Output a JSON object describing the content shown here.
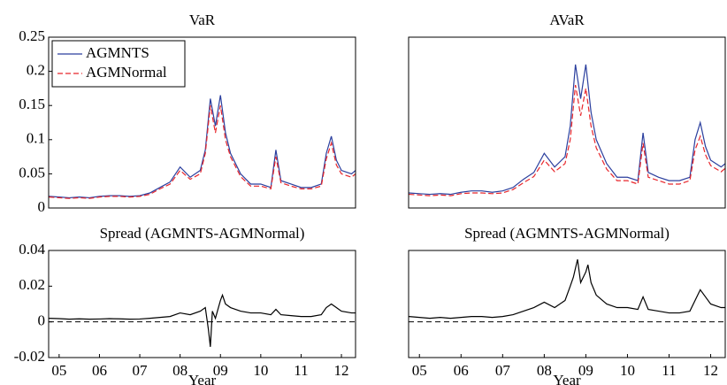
{
  "chart_data": [
    {
      "type": "line",
      "title": "VaR",
      "legend": "upper left",
      "x": [
        2004.75,
        2005,
        2005.25,
        2005.5,
        2005.75,
        2006,
        2006.25,
        2006.5,
        2006.75,
        2007,
        2007.25,
        2007.5,
        2007.75,
        2008,
        2008.25,
        2008.5,
        2008.625,
        2008.75,
        2008.875,
        2009,
        2009.125,
        2009.25,
        2009.5,
        2009.75,
        2010,
        2010.25,
        2010.375,
        2010.5,
        2010.75,
        2011,
        2011.25,
        2011.5,
        2011.625,
        2011.75,
        2011.875,
        2012,
        2012.25,
        2012.35
      ],
      "series": [
        {
          "name": "AGMNTS",
          "color": "#2b3f9e",
          "dash": false,
          "values": [
            0.017,
            0.016,
            0.015,
            0.016,
            0.015,
            0.017,
            0.018,
            0.018,
            0.017,
            0.018,
            0.022,
            0.03,
            0.038,
            0.06,
            0.045,
            0.055,
            0.085,
            0.16,
            0.12,
            0.165,
            0.11,
            0.08,
            0.05,
            0.035,
            0.035,
            0.03,
            0.085,
            0.04,
            0.035,
            0.03,
            0.03,
            0.035,
            0.08,
            0.105,
            0.07,
            0.055,
            0.05,
            0.055
          ]
        },
        {
          "name": "AGMNormal",
          "color": "#e8262b",
          "dash": true,
          "values": [
            0.016,
            0.015,
            0.014,
            0.015,
            0.014,
            0.016,
            0.017,
            0.017,
            0.016,
            0.017,
            0.02,
            0.028,
            0.035,
            0.055,
            0.042,
            0.05,
            0.08,
            0.15,
            0.11,
            0.15,
            0.1,
            0.075,
            0.046,
            0.032,
            0.032,
            0.028,
            0.075,
            0.037,
            0.032,
            0.028,
            0.028,
            0.032,
            0.072,
            0.095,
            0.063,
            0.05,
            0.045,
            0.05
          ]
        }
      ],
      "xlim": [
        2004.74,
        2012.35
      ],
      "ylim": [
        0,
        0.25
      ],
      "yticks": [
        0,
        0.05,
        0.1,
        0.15,
        0.2,
        0.25
      ]
    },
    {
      "type": "line",
      "title": "AVaR",
      "x": [
        2004.75,
        2005,
        2005.25,
        2005.5,
        2005.75,
        2006,
        2006.25,
        2006.5,
        2006.75,
        2007,
        2007.25,
        2007.5,
        2007.75,
        2008,
        2008.25,
        2008.5,
        2008.625,
        2008.75,
        2008.875,
        2009,
        2009.125,
        2009.25,
        2009.5,
        2009.75,
        2010,
        2010.25,
        2010.375,
        2010.5,
        2010.75,
        2011,
        2011.25,
        2011.5,
        2011.625,
        2011.75,
        2011.875,
        2012,
        2012.25,
        2012.35
      ],
      "series": [
        {
          "color": "#2b3f9e",
          "dash": false,
          "values": [
            0.022,
            0.021,
            0.02,
            0.021,
            0.02,
            0.023,
            0.025,
            0.025,
            0.023,
            0.025,
            0.03,
            0.042,
            0.052,
            0.08,
            0.06,
            0.075,
            0.12,
            0.21,
            0.16,
            0.21,
            0.14,
            0.1,
            0.065,
            0.045,
            0.045,
            0.04,
            0.11,
            0.052,
            0.045,
            0.04,
            0.04,
            0.045,
            0.1,
            0.125,
            0.09,
            0.07,
            0.06,
            0.065
          ]
        },
        {
          "color": "#e8262b",
          "dash": true,
          "values": [
            0.02,
            0.019,
            0.018,
            0.019,
            0.018,
            0.021,
            0.022,
            0.022,
            0.021,
            0.022,
            0.027,
            0.037,
            0.046,
            0.07,
            0.053,
            0.065,
            0.1,
            0.18,
            0.135,
            0.175,
            0.12,
            0.088,
            0.057,
            0.04,
            0.04,
            0.035,
            0.095,
            0.045,
            0.04,
            0.035,
            0.035,
            0.04,
            0.085,
            0.105,
            0.078,
            0.062,
            0.053,
            0.058
          ]
        }
      ],
      "xlim": [
        2004.74,
        2012.35
      ],
      "ylim": [
        0,
        0.25
      ]
    },
    {
      "type": "line",
      "title": "Spread (AGMNTS-AGMNormal)",
      "xlabel": "Year",
      "x": [
        2004.75,
        2005,
        2005.25,
        2005.5,
        2005.75,
        2006,
        2006.25,
        2006.5,
        2006.75,
        2007,
        2007.25,
        2007.5,
        2007.75,
        2008,
        2008.25,
        2008.5,
        2008.625,
        2008.7,
        2008.75,
        2008.8,
        2008.875,
        2009,
        2009.05,
        2009.125,
        2009.25,
        2009.5,
        2009.75,
        2010,
        2010.25,
        2010.375,
        2010.5,
        2010.75,
        2011,
        2011.25,
        2011.5,
        2011.625,
        2011.75,
        2011.875,
        2012,
        2012.25,
        2012.35
      ],
      "series": [
        {
          "color": "#000000",
          "dash": false,
          "values": [
            0.002,
            0.0018,
            0.0015,
            0.0017,
            0.0015,
            0.0016,
            0.0018,
            0.0017,
            0.0015,
            0.0016,
            0.002,
            0.0025,
            0.003,
            0.005,
            0.004,
            0.006,
            0.008,
            -0.004,
            -0.014,
            0.006,
            0.002,
            0.012,
            0.015,
            0.01,
            0.008,
            0.006,
            0.005,
            0.005,
            0.004,
            0.007,
            0.004,
            0.0035,
            0.003,
            0.003,
            0.004,
            0.008,
            0.01,
            0.008,
            0.006,
            0.005,
            0.005
          ]
        }
      ],
      "hline": 0,
      "xlim": [
        2004.74,
        2012.35
      ],
      "ylim": [
        -0.02,
        0.04
      ],
      "yticks": [
        -0.02,
        0,
        0.02,
        0.04
      ],
      "xticks": [
        {
          "value": 2005,
          "label": "05"
        },
        {
          "value": 2006,
          "label": "06"
        },
        {
          "value": 2007,
          "label": "07"
        },
        {
          "value": 2008,
          "label": "08"
        },
        {
          "value": 2009,
          "label": "09"
        },
        {
          "value": 2010,
          "label": "10"
        },
        {
          "value": 2011,
          "label": "11"
        },
        {
          "value": 2012,
          "label": "12"
        }
      ]
    },
    {
      "type": "line",
      "title": "Spread (AGMNTS-AGMNormal)",
      "xlabel": "Year",
      "x": [
        2004.75,
        2005,
        2005.25,
        2005.5,
        2005.75,
        2006,
        2006.25,
        2006.5,
        2006.75,
        2007,
        2007.25,
        2007.5,
        2007.75,
        2008,
        2008.25,
        2008.5,
        2008.625,
        2008.7,
        2008.8,
        2008.875,
        2009,
        2009.05,
        2009.125,
        2009.25,
        2009.5,
        2009.75,
        2010,
        2010.25,
        2010.375,
        2010.5,
        2010.75,
        2011,
        2011.25,
        2011.5,
        2011.625,
        2011.75,
        2011.875,
        2012,
        2012.25,
        2012.35
      ],
      "series": [
        {
          "color": "#000000",
          "dash": false,
          "values": [
            0.003,
            0.0025,
            0.002,
            0.0025,
            0.002,
            0.0025,
            0.003,
            0.003,
            0.0025,
            0.003,
            0.004,
            0.006,
            0.008,
            0.011,
            0.008,
            0.012,
            0.02,
            0.025,
            0.035,
            0.022,
            0.028,
            0.032,
            0.022,
            0.015,
            0.01,
            0.008,
            0.008,
            0.007,
            0.014,
            0.007,
            0.006,
            0.005,
            0.005,
            0.006,
            0.012,
            0.018,
            0.014,
            0.01,
            0.008,
            0.008
          ]
        }
      ],
      "hline": 0,
      "xlim": [
        2004.74,
        2012.35
      ],
      "ylim": [
        -0.02,
        0.04
      ],
      "xticks": [
        {
          "value": 2005,
          "label": "05"
        },
        {
          "value": 2006,
          "label": "06"
        },
        {
          "value": 2007,
          "label": "07"
        },
        {
          "value": 2008,
          "label": "08"
        },
        {
          "value": 2009,
          "label": "09"
        },
        {
          "value": 2010,
          "label": "10"
        },
        {
          "value": 2011,
          "label": "11"
        },
        {
          "value": 2012,
          "label": "12"
        }
      ]
    }
  ]
}
